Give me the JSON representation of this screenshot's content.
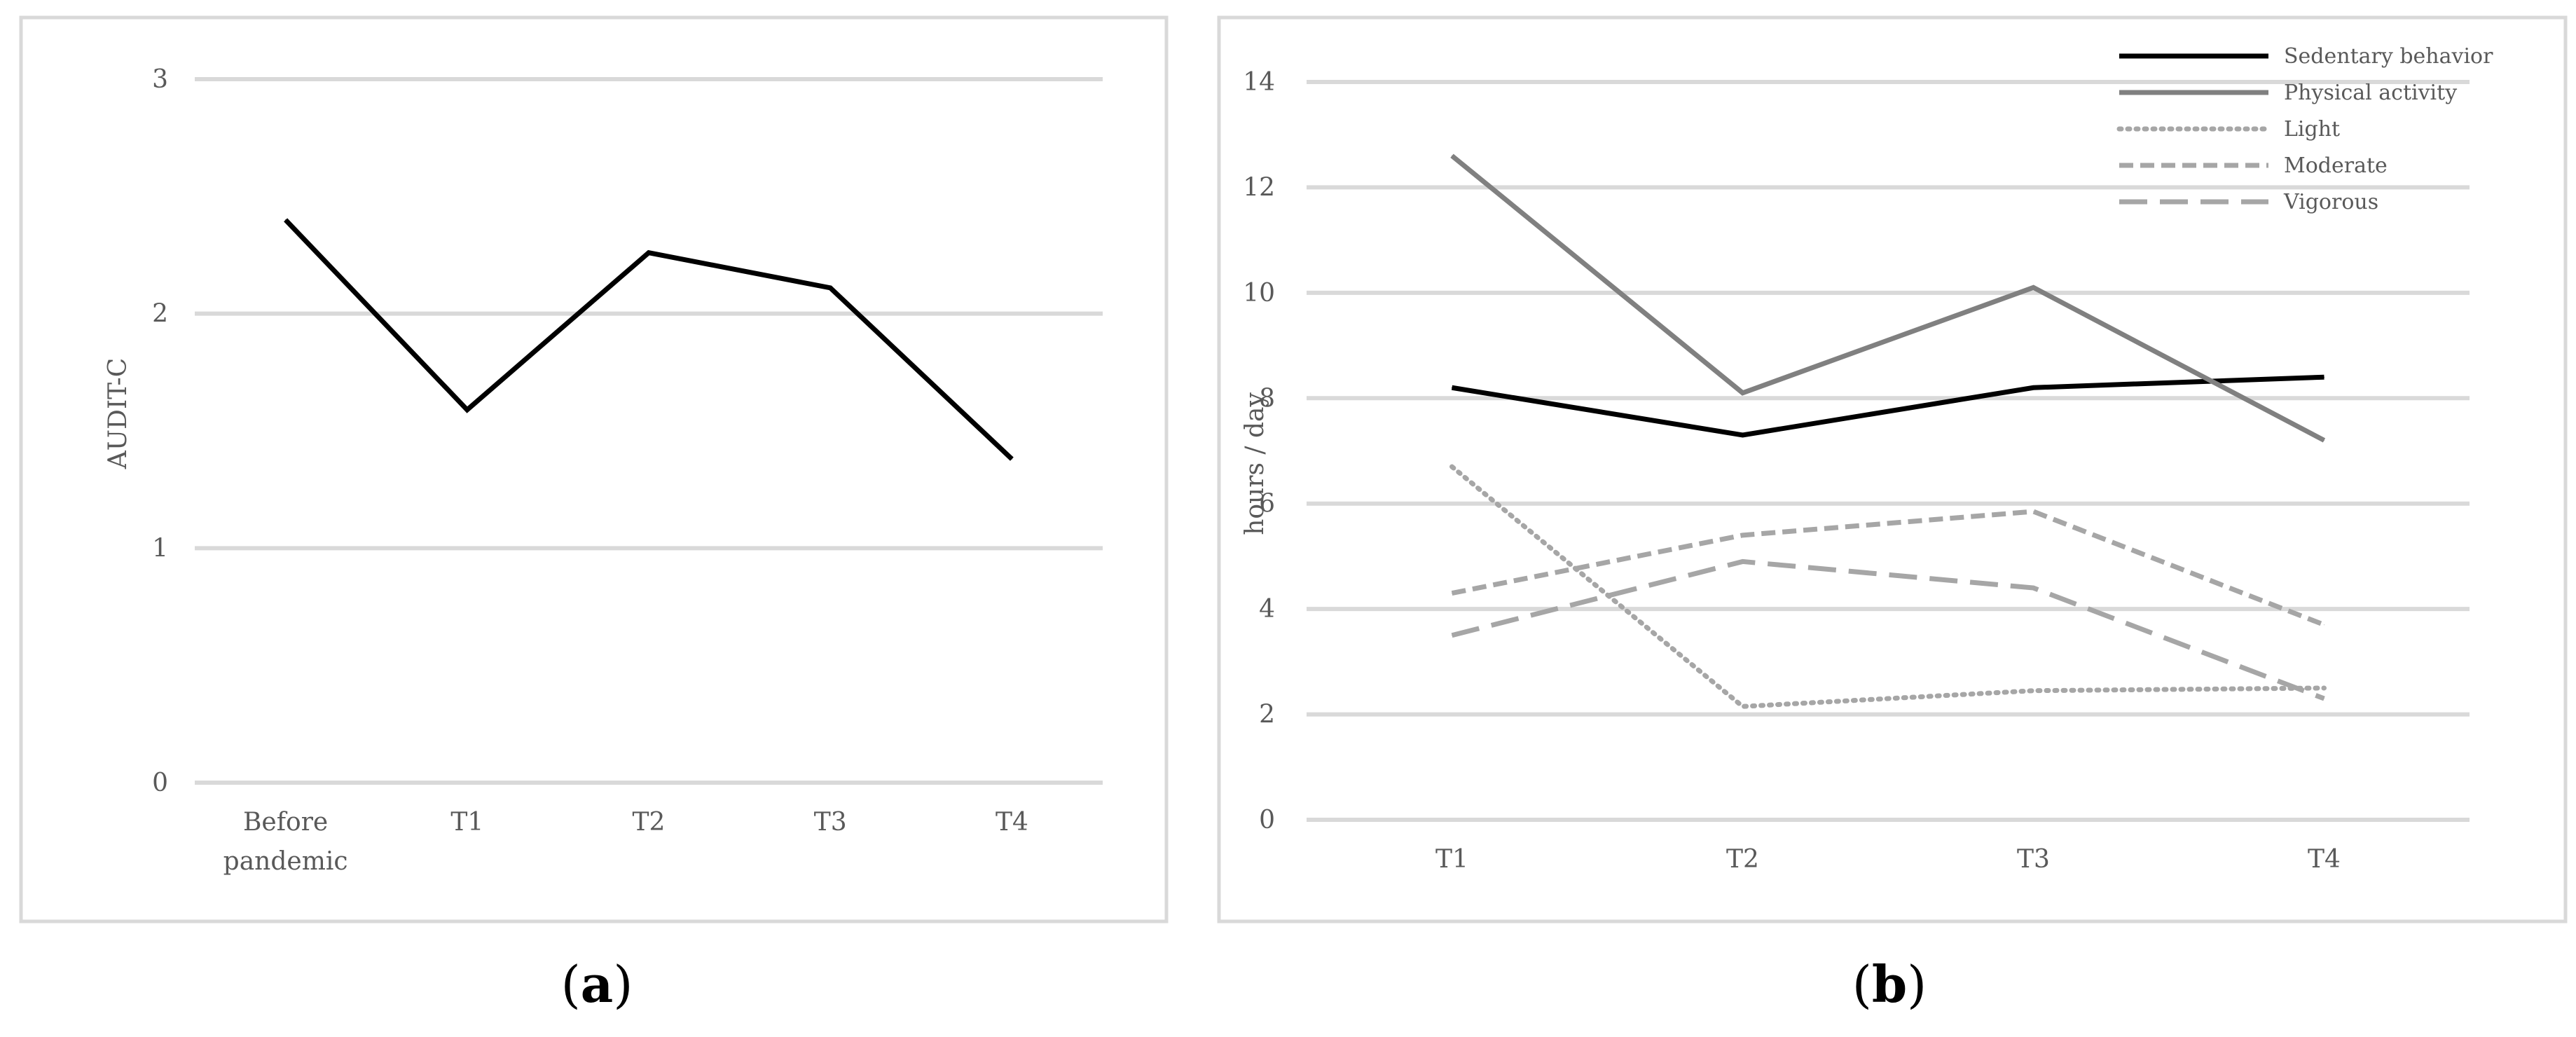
{
  "chart_data": [
    {
      "panel": "a",
      "type": "line",
      "categories": [
        "Before\npandemic",
        "T1",
        "T2",
        "T3",
        "T4"
      ],
      "series": [
        {
          "values": [
            2.4,
            1.59,
            2.26,
            2.11,
            1.38
          ],
          "color": "#000000",
          "dash": "solid"
        }
      ],
      "ylabel": "AUDIT-C",
      "ylim": [
        0,
        3
      ],
      "yticks": [
        0,
        1,
        2,
        3
      ],
      "grid": true
    },
    {
      "panel": "b",
      "type": "line",
      "categories": [
        "T1",
        "T2",
        "T3",
        "T4"
      ],
      "series": [
        {
          "name": "Sedentary behavior",
          "values": [
            8.2,
            7.3,
            8.2,
            8.4
          ],
          "color": "#000000",
          "dash": "solid"
        },
        {
          "name": "Physical activity",
          "values": [
            12.6,
            8.1,
            10.1,
            7.2
          ],
          "color": "#808080",
          "dash": "solid"
        },
        {
          "name": "Light",
          "values": [
            6.7,
            2.15,
            2.45,
            2.5
          ],
          "color": "#a6a6a6",
          "dash": "dotted"
        },
        {
          "name": "Moderate",
          "values": [
            4.3,
            5.4,
            5.85,
            3.7
          ],
          "color": "#a6a6a6",
          "dash": "dashed"
        },
        {
          "name": "Vigorous",
          "values": [
            3.5,
            4.9,
            4.4,
            2.3
          ],
          "color": "#a6a6a6",
          "dash": "longdash"
        }
      ],
      "ylabel": "hours / day",
      "ylim": [
        0,
        14
      ],
      "yticks": [
        0,
        2,
        4,
        6,
        8,
        10,
        12,
        14
      ],
      "grid": true,
      "legend_position": "top-right"
    }
  ],
  "labels": {
    "a": "a",
    "b": "b"
  }
}
